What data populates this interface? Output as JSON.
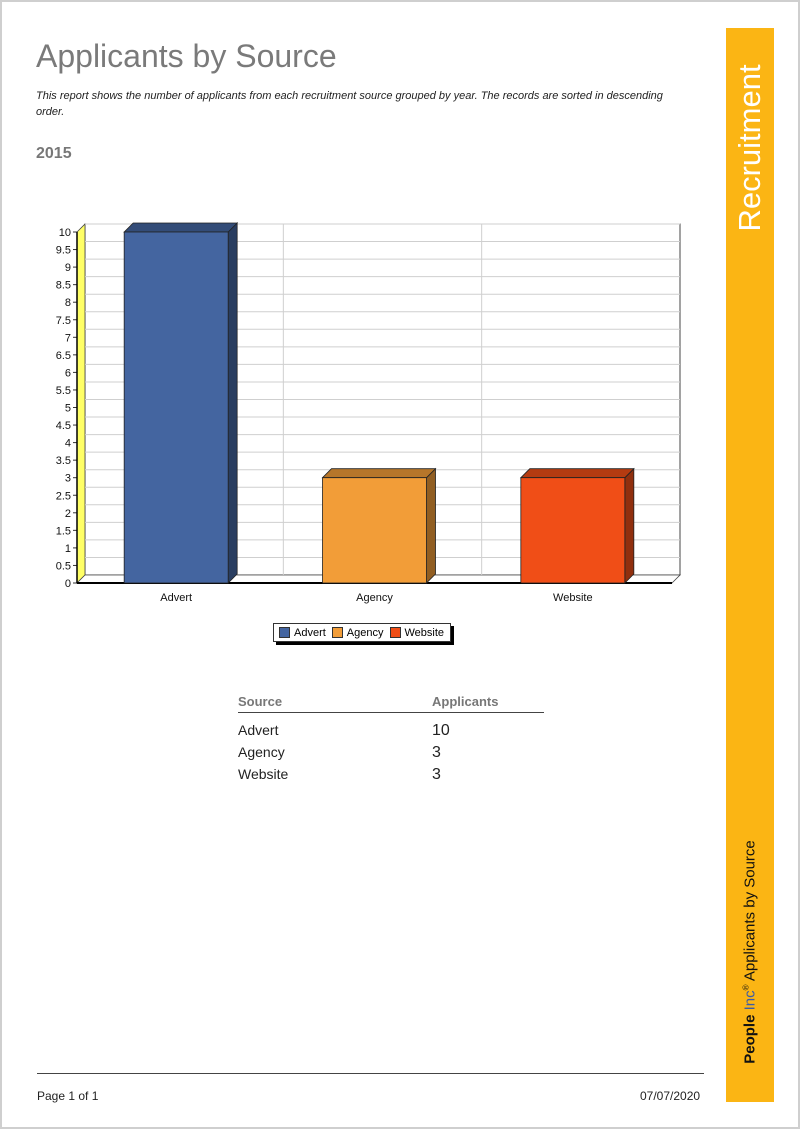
{
  "report": {
    "title": "Applicants by Source",
    "description": "This report shows the number of applicants from each recruitment source grouped by year. The records are sorted in descending order.",
    "year": "2015"
  },
  "sidebar": {
    "title": "Recruitment",
    "brand_people": "People",
    "brand_inc": "Inc",
    "brand_reg": "®",
    "report_name": "Applicants by Source",
    "color": "#fbb514"
  },
  "chart_data": {
    "type": "bar",
    "categories": [
      "Advert",
      "Agency",
      "Website"
    ],
    "values": [
      10,
      3,
      3
    ],
    "colors": [
      "#4465a0",
      "#f29d38",
      "#f04e17"
    ],
    "ylim": [
      0,
      10
    ],
    "yticks": [
      "0",
      "0.5",
      "1",
      "1.5",
      "2",
      "2.5",
      "3",
      "3.5",
      "4",
      "4.5",
      "5",
      "5.5",
      "6",
      "6.5",
      "7",
      "7.5",
      "8",
      "8.5",
      "9",
      "9.5",
      "10"
    ],
    "grid": true,
    "legend": [
      "Advert",
      "Agency",
      "Website"
    ],
    "legend_position": "bottom"
  },
  "table": {
    "headers": [
      "Source",
      "Applicants"
    ],
    "rows": [
      {
        "source": "Advert",
        "applicants": "10"
      },
      {
        "source": "Agency",
        "applicants": "3"
      },
      {
        "source": "Website",
        "applicants": "3"
      }
    ]
  },
  "footer": {
    "page": "Page 1 of 1",
    "date": "07/07/2020"
  }
}
